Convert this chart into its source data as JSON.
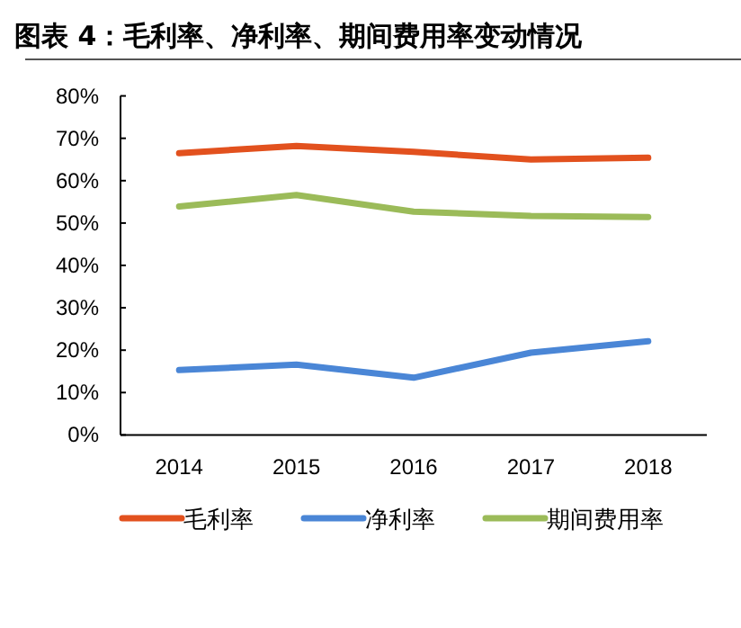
{
  "chart_data": {
    "type": "line",
    "title": "图表 4：毛利率、净利率、期间费用率变动情况",
    "categories": [
      "2014",
      "2015",
      "2016",
      "2017",
      "2018"
    ],
    "series": [
      {
        "name": "毛利率",
        "color": "#e2511e",
        "values": [
          66.5,
          68.2,
          66.8,
          65.0,
          65.4
        ]
      },
      {
        "name": "净利率",
        "color": "#4a86d6",
        "values": [
          15.3,
          16.6,
          13.5,
          19.4,
          22.1
        ]
      },
      {
        "name": "期间费用率",
        "color": "#9bbb59",
        "values": [
          53.9,
          56.6,
          52.7,
          51.7,
          51.4
        ]
      }
    ],
    "ylim": [
      0,
      80
    ],
    "yticks": [
      {
        "value": 0,
        "label": "0%"
      },
      {
        "value": 10,
        "label": "10%"
      },
      {
        "value": 20,
        "label": "20%"
      },
      {
        "value": 30,
        "label": "30%"
      },
      {
        "value": 40,
        "label": "40%"
      },
      {
        "value": 50,
        "label": "50%"
      },
      {
        "value": 60,
        "label": "60%"
      },
      {
        "value": 70,
        "label": "70%"
      },
      {
        "value": 80,
        "label": "80%"
      }
    ],
    "grid": false,
    "legend": "bottom",
    "marker": "none",
    "line_style": "solid"
  }
}
